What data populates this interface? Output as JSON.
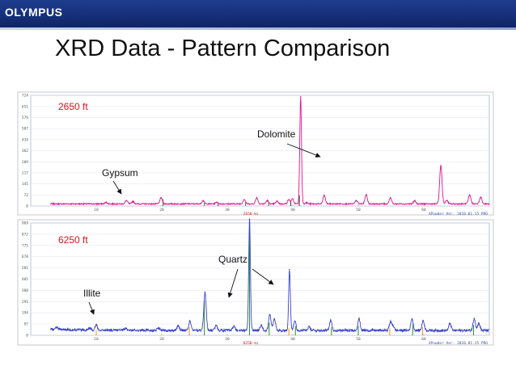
{
  "header": {
    "logo_text": "OLYMPUS",
    "banner_color": "#1a3584"
  },
  "slide": {
    "title": "XRD Data - Pattern Comparison"
  },
  "chart_data": [
    {
      "type": "line",
      "panel_label": "2650 ft",
      "xlabel": "2650-ks",
      "version_text": "XPowder Ver. 2010.01.15 PRO",
      "xlim": [
        0,
        70
      ],
      "ylim": [
        0,
        724
      ],
      "y_ticks": [
        724,
        651,
        579,
        507,
        434,
        362,
        289,
        217,
        145,
        72,
        0
      ],
      "x_ticks": [
        10,
        20,
        30,
        40,
        50,
        60
      ],
      "line_color": "#e0148c",
      "baseline": 14,
      "peaks": [
        {
          "x": 11.5,
          "h": 10
        },
        {
          "x": 14.6,
          "h": 22
        },
        {
          "x": 15.6,
          "h": 16
        },
        {
          "x": 19.9,
          "h": 40
        },
        {
          "x": 26.3,
          "h": 22
        },
        {
          "x": 28.4,
          "h": 12
        },
        {
          "x": 32.6,
          "h": 30
        },
        {
          "x": 34.5,
          "h": 40
        },
        {
          "x": 36.1,
          "h": 22
        },
        {
          "x": 37.6,
          "h": 18
        },
        {
          "x": 39.4,
          "h": 28
        },
        {
          "x": 39.95,
          "h": 32
        },
        {
          "x": 41.2,
          "h": 700
        },
        {
          "x": 42.1,
          "h": 8
        },
        {
          "x": 44.8,
          "h": 55
        },
        {
          "x": 49.7,
          "h": 22
        },
        {
          "x": 51.2,
          "h": 60
        },
        {
          "x": 54.9,
          "h": 40
        },
        {
          "x": 58.6,
          "h": 20
        },
        {
          "x": 62.6,
          "h": 250
        },
        {
          "x": 63.5,
          "h": 24
        },
        {
          "x": 67.0,
          "h": 58
        },
        {
          "x": 68.7,
          "h": 44
        }
      ],
      "phase_markers": [
        {
          "x": 20.2,
          "h": 45,
          "color": "#2a8a2a"
        },
        {
          "x": 26.5,
          "h": 22,
          "color": "#2a8a2a"
        },
        {
          "x": 28.6,
          "h": 14,
          "color": "#333333"
        },
        {
          "x": 32.8,
          "h": 26,
          "color": "#2a8a2a"
        },
        {
          "x": 36.3,
          "h": 24,
          "color": "#2a8a2a"
        },
        {
          "x": 39.7,
          "h": 32,
          "color": "#333333"
        },
        {
          "x": 41.0,
          "h": 70,
          "color": "#333333"
        }
      ],
      "annotations": [
        {
          "label": "Gypsum",
          "x": 11.5
        },
        {
          "label": "Dolomite",
          "x": 41.2
        }
      ]
    },
    {
      "type": "line",
      "panel_label": "6250 ft",
      "xlabel": "6250-ks",
      "version_text": "XPowder Ver. 2010.01.15 PRO",
      "xlim": [
        0,
        70
      ],
      "ylim": [
        0,
        969
      ],
      "y_ticks": [
        969,
        872,
        775,
        678,
        581,
        485,
        388,
        291,
        194,
        97,
        0
      ],
      "x_ticks": [
        10,
        20,
        30,
        40,
        50,
        60
      ],
      "line_color": "#3a44c8",
      "baseline": 42,
      "peaks": [
        {
          "x": 4.0,
          "h": 22
        },
        {
          "x": 9.0,
          "h": 20
        },
        {
          "x": 10.0,
          "h": 46
        },
        {
          "x": 14.5,
          "h": 14
        },
        {
          "x": 19.5,
          "h": 18
        },
        {
          "x": 22.5,
          "h": 42
        },
        {
          "x": 24.3,
          "h": 80
        },
        {
          "x": 26.6,
          "h": 330
        },
        {
          "x": 28.3,
          "h": 42
        },
        {
          "x": 31.0,
          "h": 36
        },
        {
          "x": 33.4,
          "h": 960
        },
        {
          "x": 35.2,
          "h": 48
        },
        {
          "x": 36.5,
          "h": 135
        },
        {
          "x": 37.2,
          "h": 98
        },
        {
          "x": 39.5,
          "h": 525
        },
        {
          "x": 40.3,
          "h": 80
        },
        {
          "x": 42.5,
          "h": 30
        },
        {
          "x": 45.8,
          "h": 84
        },
        {
          "x": 50.1,
          "h": 100
        },
        {
          "x": 54.9,
          "h": 70
        },
        {
          "x": 55.3,
          "h": 40
        },
        {
          "x": 58.2,
          "h": 100
        },
        {
          "x": 59.9,
          "h": 84
        },
        {
          "x": 64.0,
          "h": 60
        },
        {
          "x": 67.7,
          "h": 104
        },
        {
          "x": 68.4,
          "h": 62
        }
      ],
      "phase_markers": [
        {
          "x": 26.5,
          "h": 300,
          "color": "#2a8a2a"
        },
        {
          "x": 33.4,
          "h": 930,
          "color": "#2a8a2a"
        },
        {
          "x": 36.4,
          "h": 110,
          "color": "#2a8a2a"
        },
        {
          "x": 39.4,
          "h": 60,
          "color": "#f08a1e"
        },
        {
          "x": 40.4,
          "h": 80,
          "color": "#2a8a2a"
        },
        {
          "x": 24.2,
          "h": 70,
          "color": "#f08a1e"
        },
        {
          "x": 45.9,
          "h": 70,
          "color": "#2a8a2a"
        },
        {
          "x": 50.0,
          "h": 80,
          "color": "#2a8a2a"
        },
        {
          "x": 54.8,
          "h": 60,
          "color": "#f08a1e"
        },
        {
          "x": 58.3,
          "h": 90,
          "color": "#2a8a2a"
        },
        {
          "x": 59.8,
          "h": 70,
          "color": "#f08a1e"
        },
        {
          "x": 67.6,
          "h": 90,
          "color": "#2a8a2a"
        },
        {
          "x": 10.0,
          "h": 40,
          "color": "#f08a1e"
        }
      ],
      "annotations": [
        {
          "label": "Quartz",
          "x": 26.6
        },
        {
          "label": "Illite",
          "x": 10.0
        }
      ]
    }
  ]
}
